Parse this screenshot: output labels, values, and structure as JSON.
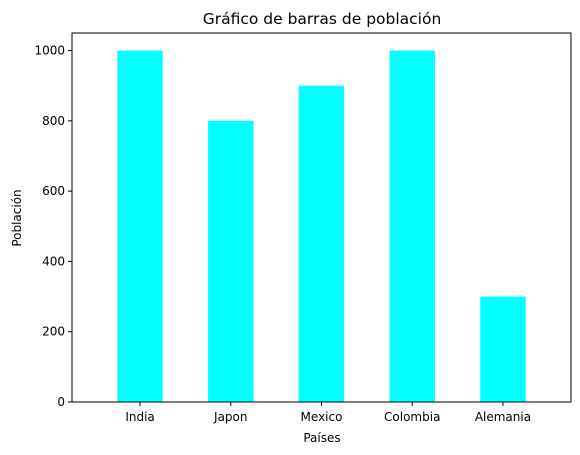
{
  "chart_data": {
    "type": "bar",
    "title": "Gráfico de barras de población",
    "xlabel": "Países",
    "ylabel": "Población",
    "categories": [
      "India",
      "Japon",
      "Mexico",
      "Colombia",
      "Alemania"
    ],
    "values": [
      1000,
      800,
      900,
      1000,
      300
    ],
    "yticks": [
      0,
      200,
      400,
      600,
      800,
      1000
    ],
    "ylim": [
      0,
      1050
    ],
    "bar_color": "#00ffff",
    "grid": false,
    "legend": "none"
  }
}
